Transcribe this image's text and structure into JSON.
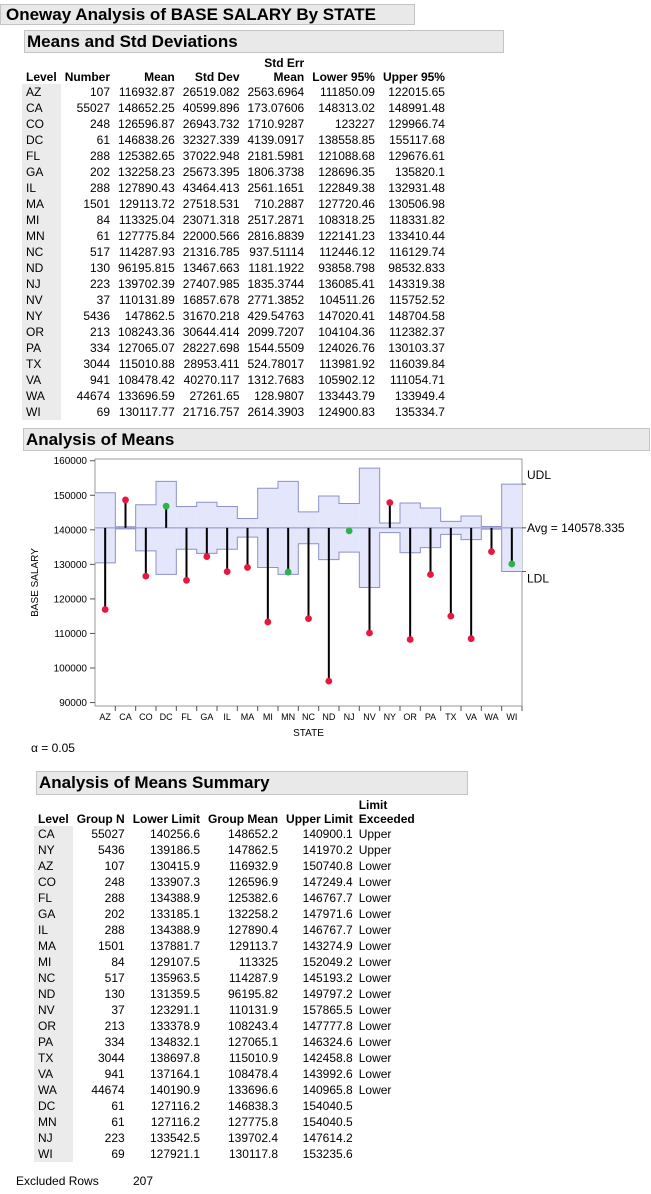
{
  "title": "Oneway Analysis of BASE SALARY By STATE",
  "means_table": {
    "title": "Means and Std Deviations",
    "headers": [
      "Level",
      "Number",
      "Mean",
      "Std Dev",
      "Std Err Mean",
      "Lower 95%",
      "Upper 95%"
    ],
    "rows": [
      [
        "AZ",
        "107",
        "116932.87",
        "26519.082",
        "2563.6964",
        "111850.09",
        "122015.65"
      ],
      [
        "CA",
        "55027",
        "148652.25",
        "40599.896",
        "173.07606",
        "148313.02",
        "148991.48"
      ],
      [
        "CO",
        "248",
        "126596.87",
        "26943.732",
        "1710.9287",
        "123227",
        "129966.74"
      ],
      [
        "DC",
        "61",
        "146838.26",
        "32327.339",
        "4139.0917",
        "138558.85",
        "155117.68"
      ],
      [
        "FL",
        "288",
        "125382.65",
        "37022.948",
        "2181.5981",
        "121088.68",
        "129676.61"
      ],
      [
        "GA",
        "202",
        "132258.23",
        "25673.395",
        "1806.3738",
        "128696.35",
        "135820.1"
      ],
      [
        "IL",
        "288",
        "127890.43",
        "43464.413",
        "2561.1651",
        "122849.38",
        "132931.48"
      ],
      [
        "MA",
        "1501",
        "129113.72",
        "27518.531",
        "710.2887",
        "127720.46",
        "130506.98"
      ],
      [
        "MI",
        "84",
        "113325.04",
        "23071.318",
        "2517.2871",
        "108318.25",
        "118331.82"
      ],
      [
        "MN",
        "61",
        "127775.84",
        "22000.566",
        "2816.8839",
        "122141.23",
        "133410.44"
      ],
      [
        "NC",
        "517",
        "114287.93",
        "21316.785",
        "937.51114",
        "112446.12",
        "116129.74"
      ],
      [
        "ND",
        "130",
        "96195.815",
        "13467.663",
        "1181.1922",
        "93858.798",
        "98532.833"
      ],
      [
        "NJ",
        "223",
        "139702.39",
        "27407.985",
        "1835.3744",
        "136085.41",
        "143319.38"
      ],
      [
        "NV",
        "37",
        "110131.89",
        "16857.678",
        "2771.3852",
        "104511.26",
        "115752.52"
      ],
      [
        "NY",
        "5436",
        "147862.5",
        "31670.218",
        "429.54763",
        "147020.41",
        "148704.58"
      ],
      [
        "OR",
        "213",
        "108243.36",
        "30644.414",
        "2099.7207",
        "104104.36",
        "112382.37"
      ],
      [
        "PA",
        "334",
        "127065.07",
        "28227.698",
        "1544.5509",
        "124026.76",
        "130103.37"
      ],
      [
        "TX",
        "3044",
        "115010.88",
        "28953.411",
        "524.78017",
        "113981.92",
        "116039.84"
      ],
      [
        "VA",
        "941",
        "108478.42",
        "40270.117",
        "1312.7683",
        "105902.12",
        "111054.71"
      ],
      [
        "WA",
        "44674",
        "133696.59",
        "27261.65",
        "128.9807",
        "133443.79",
        "133949.4"
      ],
      [
        "WI",
        "69",
        "130117.77",
        "21716.757",
        "2614.3903",
        "124900.83",
        "135334.7"
      ]
    ]
  },
  "anom_section": {
    "title": "Analysis of Means"
  },
  "chart_data": {
    "type": "scatter",
    "title": "",
    "xlabel": "STATE",
    "ylabel": "BASE SALARY",
    "ylim": [
      89000,
      160500
    ],
    "yticks": [
      90000,
      100000,
      110000,
      120000,
      130000,
      140000,
      150000,
      160000
    ],
    "grid": false,
    "avg": 140578.335,
    "avg_label": "Avg = 140578.335",
    "udl_label": "UDL",
    "ldl_label": "LDL",
    "categories": [
      "AZ",
      "CA",
      "CO",
      "DC",
      "FL",
      "GA",
      "IL",
      "MA",
      "MI",
      "MN",
      "NC",
      "ND",
      "NJ",
      "NV",
      "NY",
      "OR",
      "PA",
      "TX",
      "VA",
      "WA",
      "WI"
    ],
    "values": [
      116932.9,
      148652.2,
      126596.9,
      146838.3,
      125382.6,
      132258.2,
      127890.4,
      129113.7,
      113325,
      127775.8,
      114287.9,
      96195.82,
      139702.4,
      110131.9,
      147862.5,
      108243.4,
      127065.1,
      115010.9,
      108478.4,
      133696.6,
      130117.8
    ],
    "lower_limits": [
      130415.9,
      140256.6,
      133907.3,
      127116.2,
      134388.9,
      133185.1,
      134388.9,
      137881.7,
      129107.5,
      127116.2,
      135963.5,
      131359.5,
      133542.5,
      123291.1,
      139186.5,
      133378.9,
      134832.1,
      138697.8,
      137164.1,
      140190.9,
      127921.1
    ],
    "upper_limits": [
      150740.8,
      140900.1,
      147249.4,
      154040.5,
      146767.7,
      147971.6,
      146767.7,
      143274.9,
      152049.2,
      154040.5,
      145193.2,
      149797.2,
      147614.2,
      157865.5,
      141970.2,
      147777.8,
      146324.6,
      142458.8,
      143992.6,
      140965.8,
      153235.6
    ],
    "exceeded_color": "#e8173f",
    "within_color": "#2cb34a",
    "band_color": "#e4e6fb",
    "band_edge_color": "#8c91c8"
  },
  "alpha_label": "α = 0.05",
  "summary_table": {
    "title": "Analysis of Means Summary",
    "headers": [
      "Level",
      "Group N",
      "Lower Limit",
      "Group Mean",
      "Upper Limit",
      "Limit Exceeded"
    ],
    "rows": [
      [
        "CA",
        "55027",
        "140256.6",
        "148652.2",
        "140900.1",
        "Upper"
      ],
      [
        "NY",
        "5436",
        "139186.5",
        "147862.5",
        "141970.2",
        "Upper"
      ],
      [
        "AZ",
        "107",
        "130415.9",
        "116932.9",
        "150740.8",
        "Lower"
      ],
      [
        "CO",
        "248",
        "133907.3",
        "126596.9",
        "147249.4",
        "Lower"
      ],
      [
        "FL",
        "288",
        "134388.9",
        "125382.6",
        "146767.7",
        "Lower"
      ],
      [
        "GA",
        "202",
        "133185.1",
        "132258.2",
        "147971.6",
        "Lower"
      ],
      [
        "IL",
        "288",
        "134388.9",
        "127890.4",
        "146767.7",
        "Lower"
      ],
      [
        "MA",
        "1501",
        "137881.7",
        "129113.7",
        "143274.9",
        "Lower"
      ],
      [
        "MI",
        "84",
        "129107.5",
        "113325",
        "152049.2",
        "Lower"
      ],
      [
        "NC",
        "517",
        "135963.5",
        "114287.9",
        "145193.2",
        "Lower"
      ],
      [
        "ND",
        "130",
        "131359.5",
        "96195.82",
        "149797.2",
        "Lower"
      ],
      [
        "NV",
        "37",
        "123291.1",
        "110131.9",
        "157865.5",
        "Lower"
      ],
      [
        "OR",
        "213",
        "133378.9",
        "108243.4",
        "147777.8",
        "Lower"
      ],
      [
        "PA",
        "334",
        "134832.1",
        "127065.1",
        "146324.6",
        "Lower"
      ],
      [
        "TX",
        "3044",
        "138697.8",
        "115010.9",
        "142458.8",
        "Lower"
      ],
      [
        "VA",
        "941",
        "137164.1",
        "108478.4",
        "143992.6",
        "Lower"
      ],
      [
        "WA",
        "44674",
        "140190.9",
        "133696.6",
        "140965.8",
        "Lower"
      ],
      [
        "DC",
        "61",
        "127116.2",
        "146838.3",
        "154040.5",
        ""
      ],
      [
        "MN",
        "61",
        "127116.2",
        "127775.8",
        "154040.5",
        ""
      ],
      [
        "NJ",
        "223",
        "133542.5",
        "139702.4",
        "147614.2",
        ""
      ],
      [
        "WI",
        "69",
        "127921.1",
        "130117.8",
        "153235.6",
        ""
      ]
    ]
  },
  "excluded_rows": {
    "label": "Excluded Rows",
    "value": "207"
  }
}
